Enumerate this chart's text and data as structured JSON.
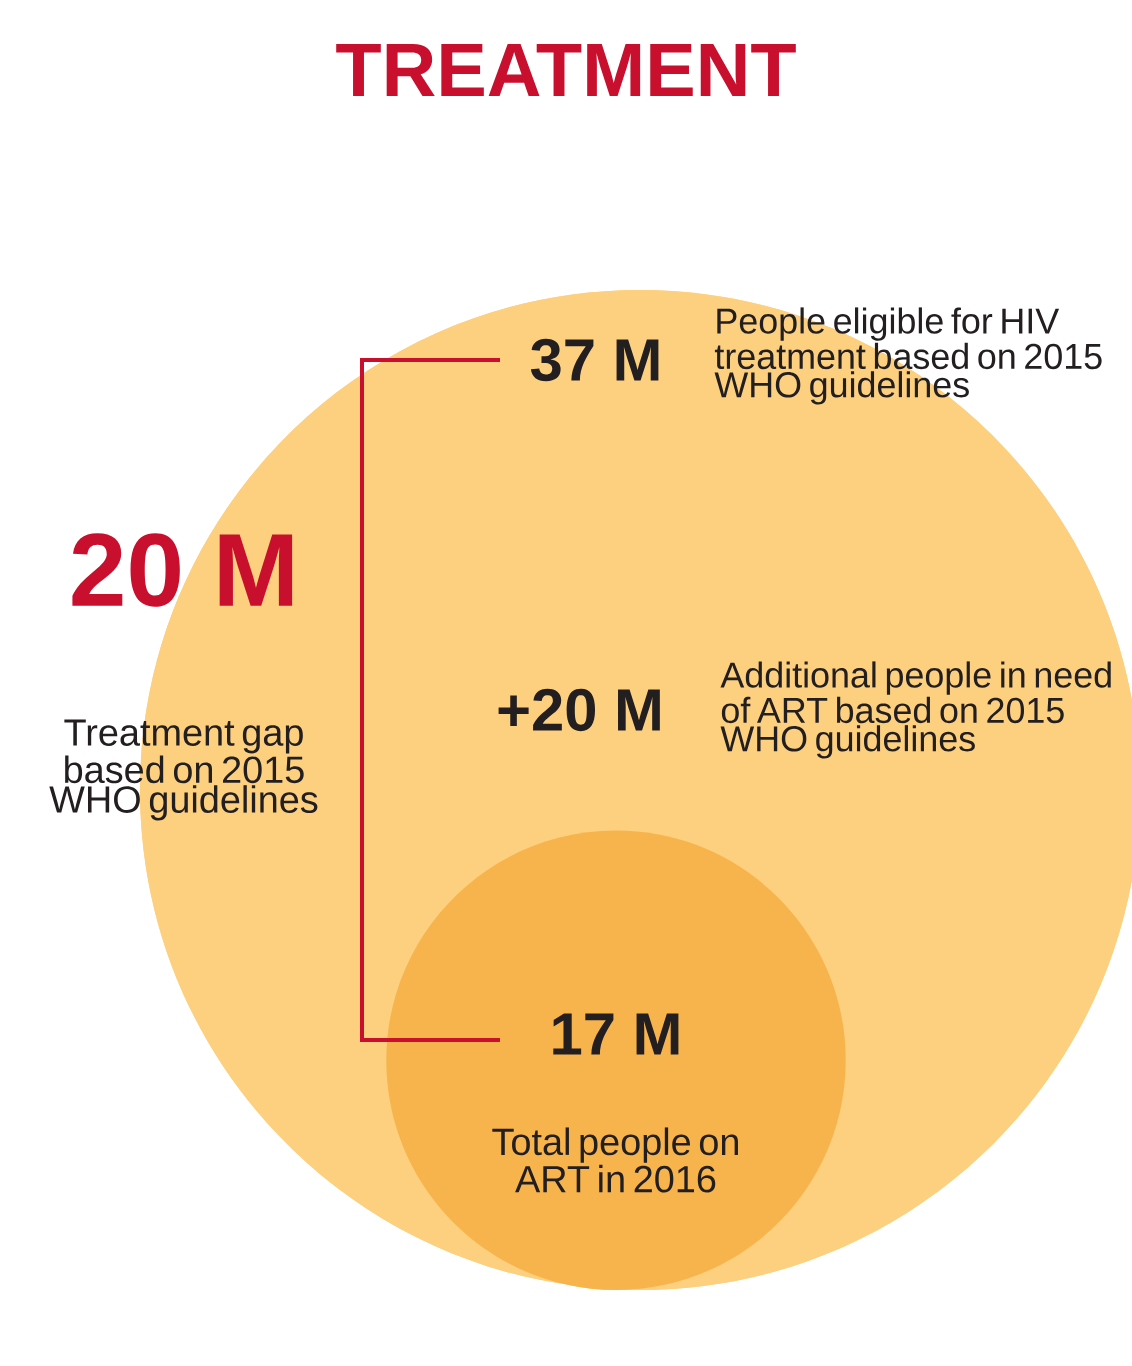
{
  "chart_data": {
    "type": "other",
    "title": "TREATMENT",
    "categories": [
      "People eligible for HIV treatment based on 2015 WHO guidelines",
      "Additional people in need of ART based on 2015 WHO guidelines",
      "Total people on ART in 2016"
    ],
    "values": [
      37,
      20,
      17
    ],
    "value_labels": [
      "37 M",
      "+20 M",
      "17 M"
    ],
    "colors": [
      "#fdd07f",
      "#fdd07f",
      "#f7b44c"
    ],
    "annotations": [
      "20 M",
      "Treatment gap based on 2015 WHO guidelines"
    ]
  }
}
